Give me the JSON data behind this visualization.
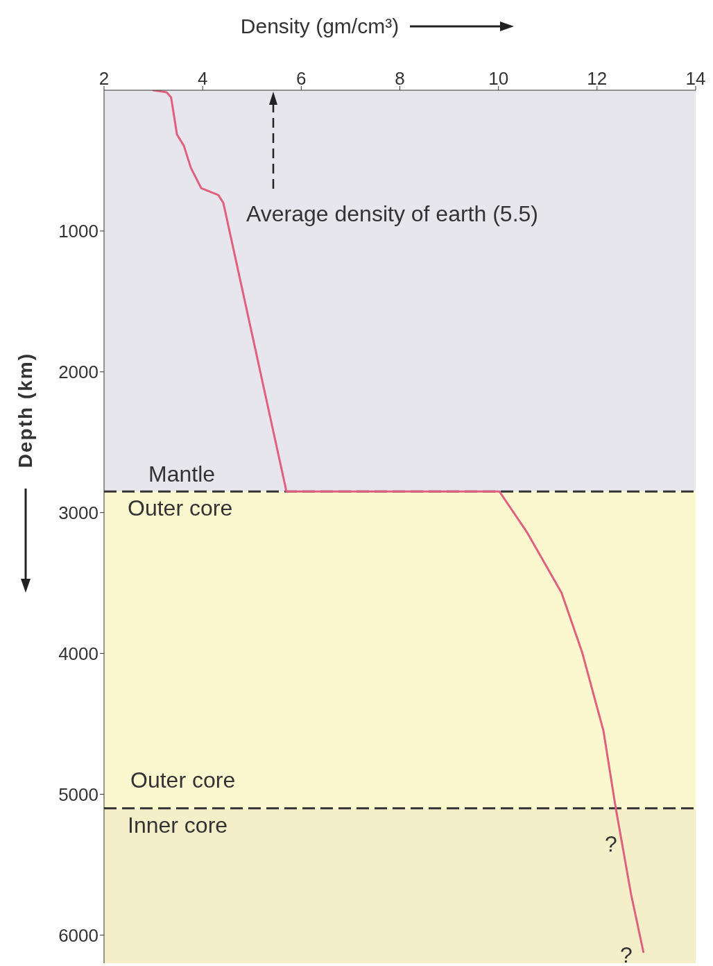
{
  "chart_data": {
    "type": "line",
    "xlabel": "Density (gm/cm³)",
    "ylabel": "Depth (km)",
    "x": [
      3.0,
      3.27,
      3.36,
      3.48,
      3.62,
      3.76,
      3.97,
      4.32,
      4.42,
      5.7,
      10.02,
      10.58,
      11.28,
      11.7,
      12.13,
      12.38,
      12.69,
      12.94
    ],
    "series": [
      {
        "color": "#e0607e",
        "values": [
          0,
          15,
          50,
          315,
          395,
          550,
          695,
          745,
          800,
          2850,
          2850,
          3140,
          3570,
          3995,
          4550,
          5100,
          5710,
          6120
        ]
      }
    ],
    "xlim": [
      2,
      14
    ],
    "xticks": [
      2,
      4,
      6,
      8,
      10,
      12,
      14
    ],
    "ylim": [
      6200,
      0
    ],
    "yticks": [
      1000,
      2000,
      3000,
      4000,
      5000,
      6000
    ],
    "grid": false,
    "legend": false,
    "marker": "none",
    "line_style": "solid",
    "bands": [
      {
        "axis": "y",
        "from": 0,
        "to": 2850,
        "color": "#e6e6ec",
        "label": "Mantle"
      },
      {
        "axis": "y",
        "from": 2850,
        "to": 5100,
        "color": "#fbf8cf",
        "label": "Outer core"
      },
      {
        "axis": "y",
        "from": 5100,
        "to": 6200,
        "color": "#f4efc8",
        "label": "Inner core"
      }
    ],
    "ref_lines": [
      {
        "axis": "y",
        "value": 2850,
        "color": "#333333",
        "line_style": "dashed"
      },
      {
        "axis": "y",
        "value": 5100,
        "color": "#333333",
        "line_style": "dashed"
      }
    ],
    "annotations": [
      "Average density of earth (5.5)",
      "Outer core",
      "?",
      "?"
    ]
  }
}
